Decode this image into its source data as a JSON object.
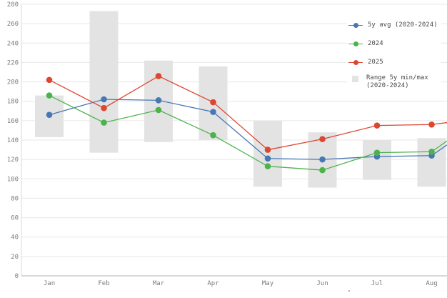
{
  "chart_data": {
    "type": "line",
    "title": "",
    "xlabel": "",
    "ylabel": "",
    "categories": [
      "Jan",
      "Feb",
      "Mar",
      "Apr",
      "May",
      "Jun",
      "Jul",
      "Aug"
    ],
    "y_axis": {
      "min": 0,
      "max": 280,
      "tick_step": 20,
      "ticks": [
        0,
        20,
        40,
        60,
        80,
        100,
        120,
        140,
        160,
        180,
        200,
        220,
        240,
        260,
        280
      ]
    },
    "grid": true,
    "legend_position": "top-right",
    "series": [
      {
        "name": "5y avg (2020-2024)",
        "color": "#4878b4",
        "values": [
          166,
          182,
          181,
          169,
          121,
          120,
          123,
          124
        ],
        "clipped_next_value_at_right_edge": 135
      },
      {
        "name": "2024",
        "color": "#4cb34c",
        "values": [
          186,
          158,
          171,
          145,
          113,
          109,
          127,
          128
        ],
        "clipped_next_value_at_right_edge": 139
      },
      {
        "name": "2025",
        "color": "#dc4731",
        "values": [
          202,
          173,
          206,
          179,
          130,
          141,
          155,
          156
        ],
        "clipped_next_value_at_right_edge": 158
      }
    ],
    "range_series": {
      "name": "Range 5y min/max (2020-2024)",
      "color": "#e3e3e3",
      "min": [
        143,
        127,
        138,
        140,
        92,
        91,
        99,
        92
      ],
      "max": [
        186,
        273,
        222,
        216,
        160,
        148,
        140,
        142
      ]
    }
  },
  "legend": {
    "items": [
      {
        "label": "5y avg (2020-2024)"
      },
      {
        "label": "2024"
      },
      {
        "label": "2025"
      },
      {
        "label_line1": "Range 5y min/max",
        "label_line2": "(2020-2024)"
      }
    ]
  },
  "colors": {
    "gridline": "#e7e7e7",
    "axis_bottom": "#b0b0b0",
    "axis_left": "#d8d8d8",
    "tick_label": "#7b7b7b",
    "legend_text": "#4a4a4a"
  }
}
